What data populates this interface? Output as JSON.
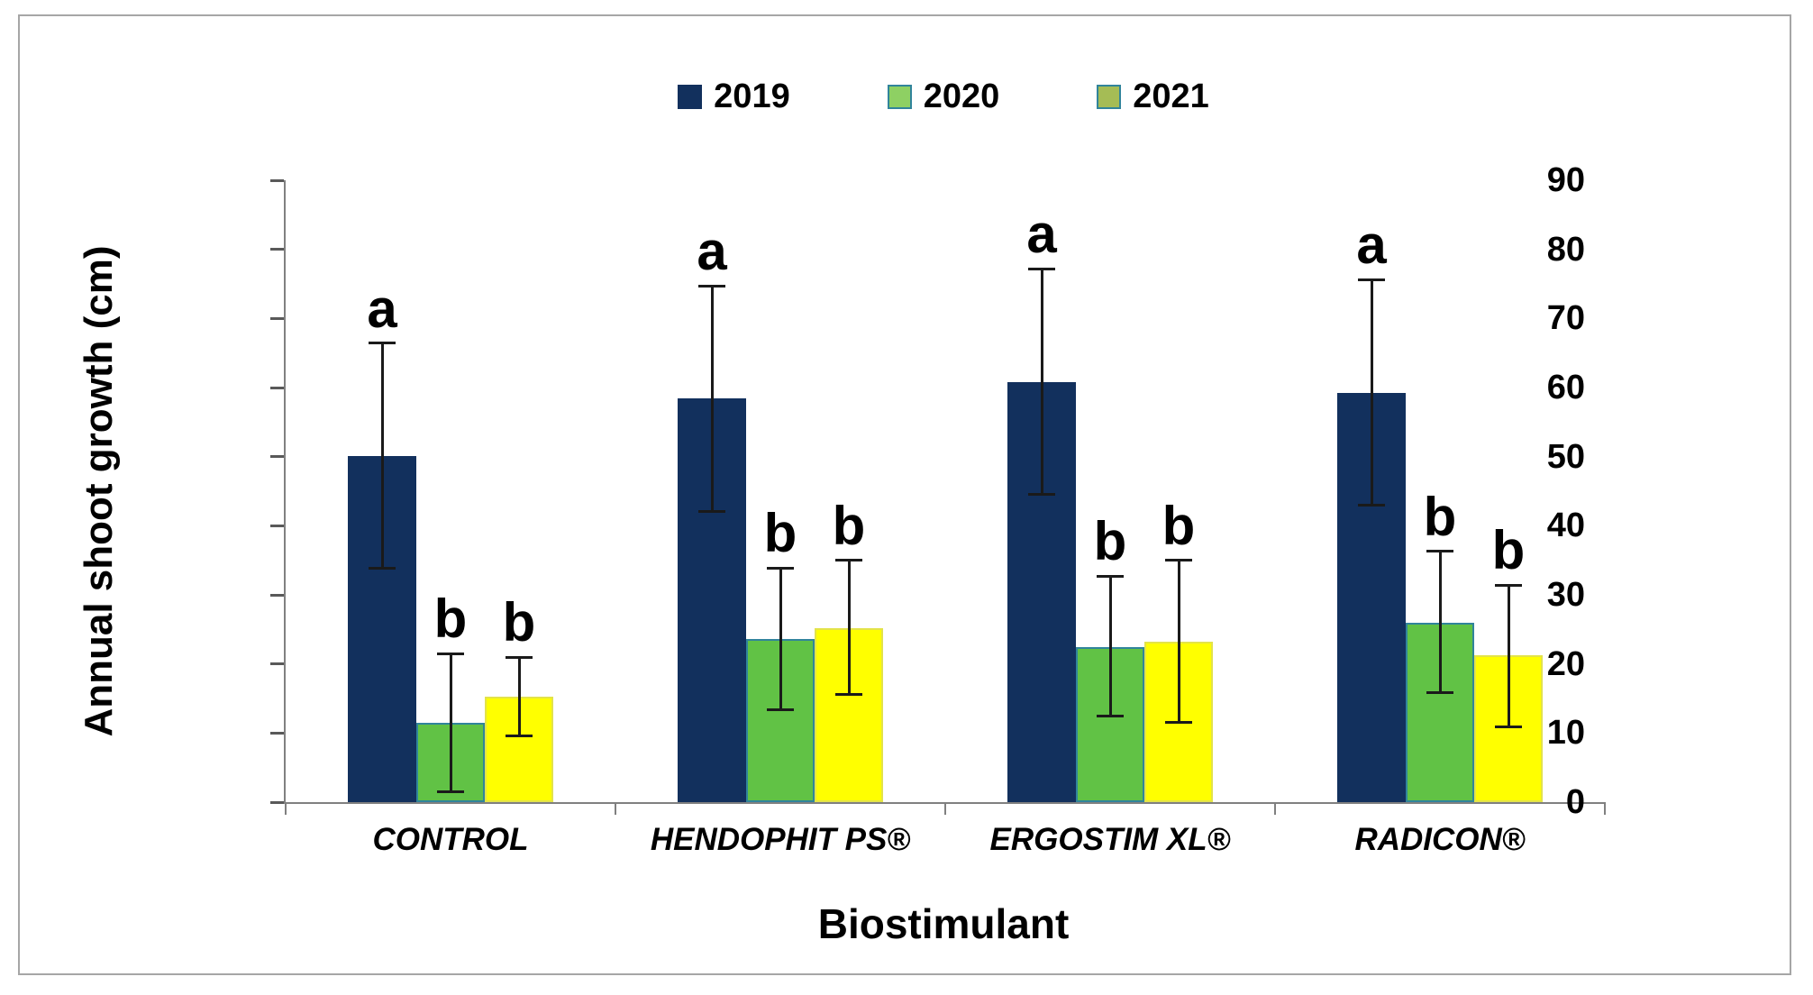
{
  "figure": {
    "background": "#FFFFFF",
    "border_color": "#A6A6A6"
  },
  "chart_data": {
    "type": "bar",
    "title": "",
    "xlabel": "Biostimulant",
    "ylabel": "Annual shoot growth (cm)",
    "ylim": [
      0,
      90
    ],
    "ytick_step": 10,
    "ytick_labels": [
      "0",
      "10",
      "20",
      "30",
      "40",
      "50",
      "60",
      "70",
      "80",
      "90"
    ],
    "grid": false,
    "legend_position": "top-center",
    "error_bars": true,
    "categories": [
      "CONTROL",
      "HENDOPHIT PS®",
      "ERGOSTIM XL®",
      "RADICON®"
    ],
    "series": [
      {
        "name": "2019",
        "color": "#12305D",
        "border_color": "#12305D",
        "legend_fill": "#12305D",
        "legend_border": "#12305D",
        "values": [
          50.1,
          58.4,
          60.8,
          59.2
        ],
        "err_low": [
          33.8,
          42.1,
          44.6,
          43.0
        ],
        "err_high": [
          66.4,
          74.7,
          77.2,
          75.6
        ],
        "letters": [
          "a",
          "a",
          "a",
          "a"
        ]
      },
      {
        "name": "2020",
        "color": "#61C245",
        "border_color": "#31849B",
        "legend_fill": "#8ED063",
        "legend_border": "#31849B",
        "values": [
          11.5,
          23.6,
          22.4,
          26.0
        ],
        "err_low": [
          1.5,
          13.4,
          12.4,
          15.9
        ],
        "err_high": [
          21.5,
          33.9,
          32.7,
          36.3
        ],
        "letters": [
          "b",
          "b",
          "b",
          "b"
        ]
      },
      {
        "name": "2021",
        "color": "#FFFF00",
        "border_color": "#E3E34A",
        "legend_fill": "#A5BC55",
        "legend_border": "#31849B",
        "values": [
          15.3,
          25.2,
          23.2,
          21.2
        ],
        "err_low": [
          9.6,
          15.6,
          11.5,
          10.9
        ],
        "err_high": [
          21.0,
          35.0,
          35.0,
          31.4
        ],
        "letters": [
          "b",
          "b",
          "b",
          "b"
        ]
      }
    ],
    "colors": {
      "axis": "#808080",
      "tick": "#595959",
      "error_bar": "#1A1A1A",
      "text": "#000000"
    }
  }
}
